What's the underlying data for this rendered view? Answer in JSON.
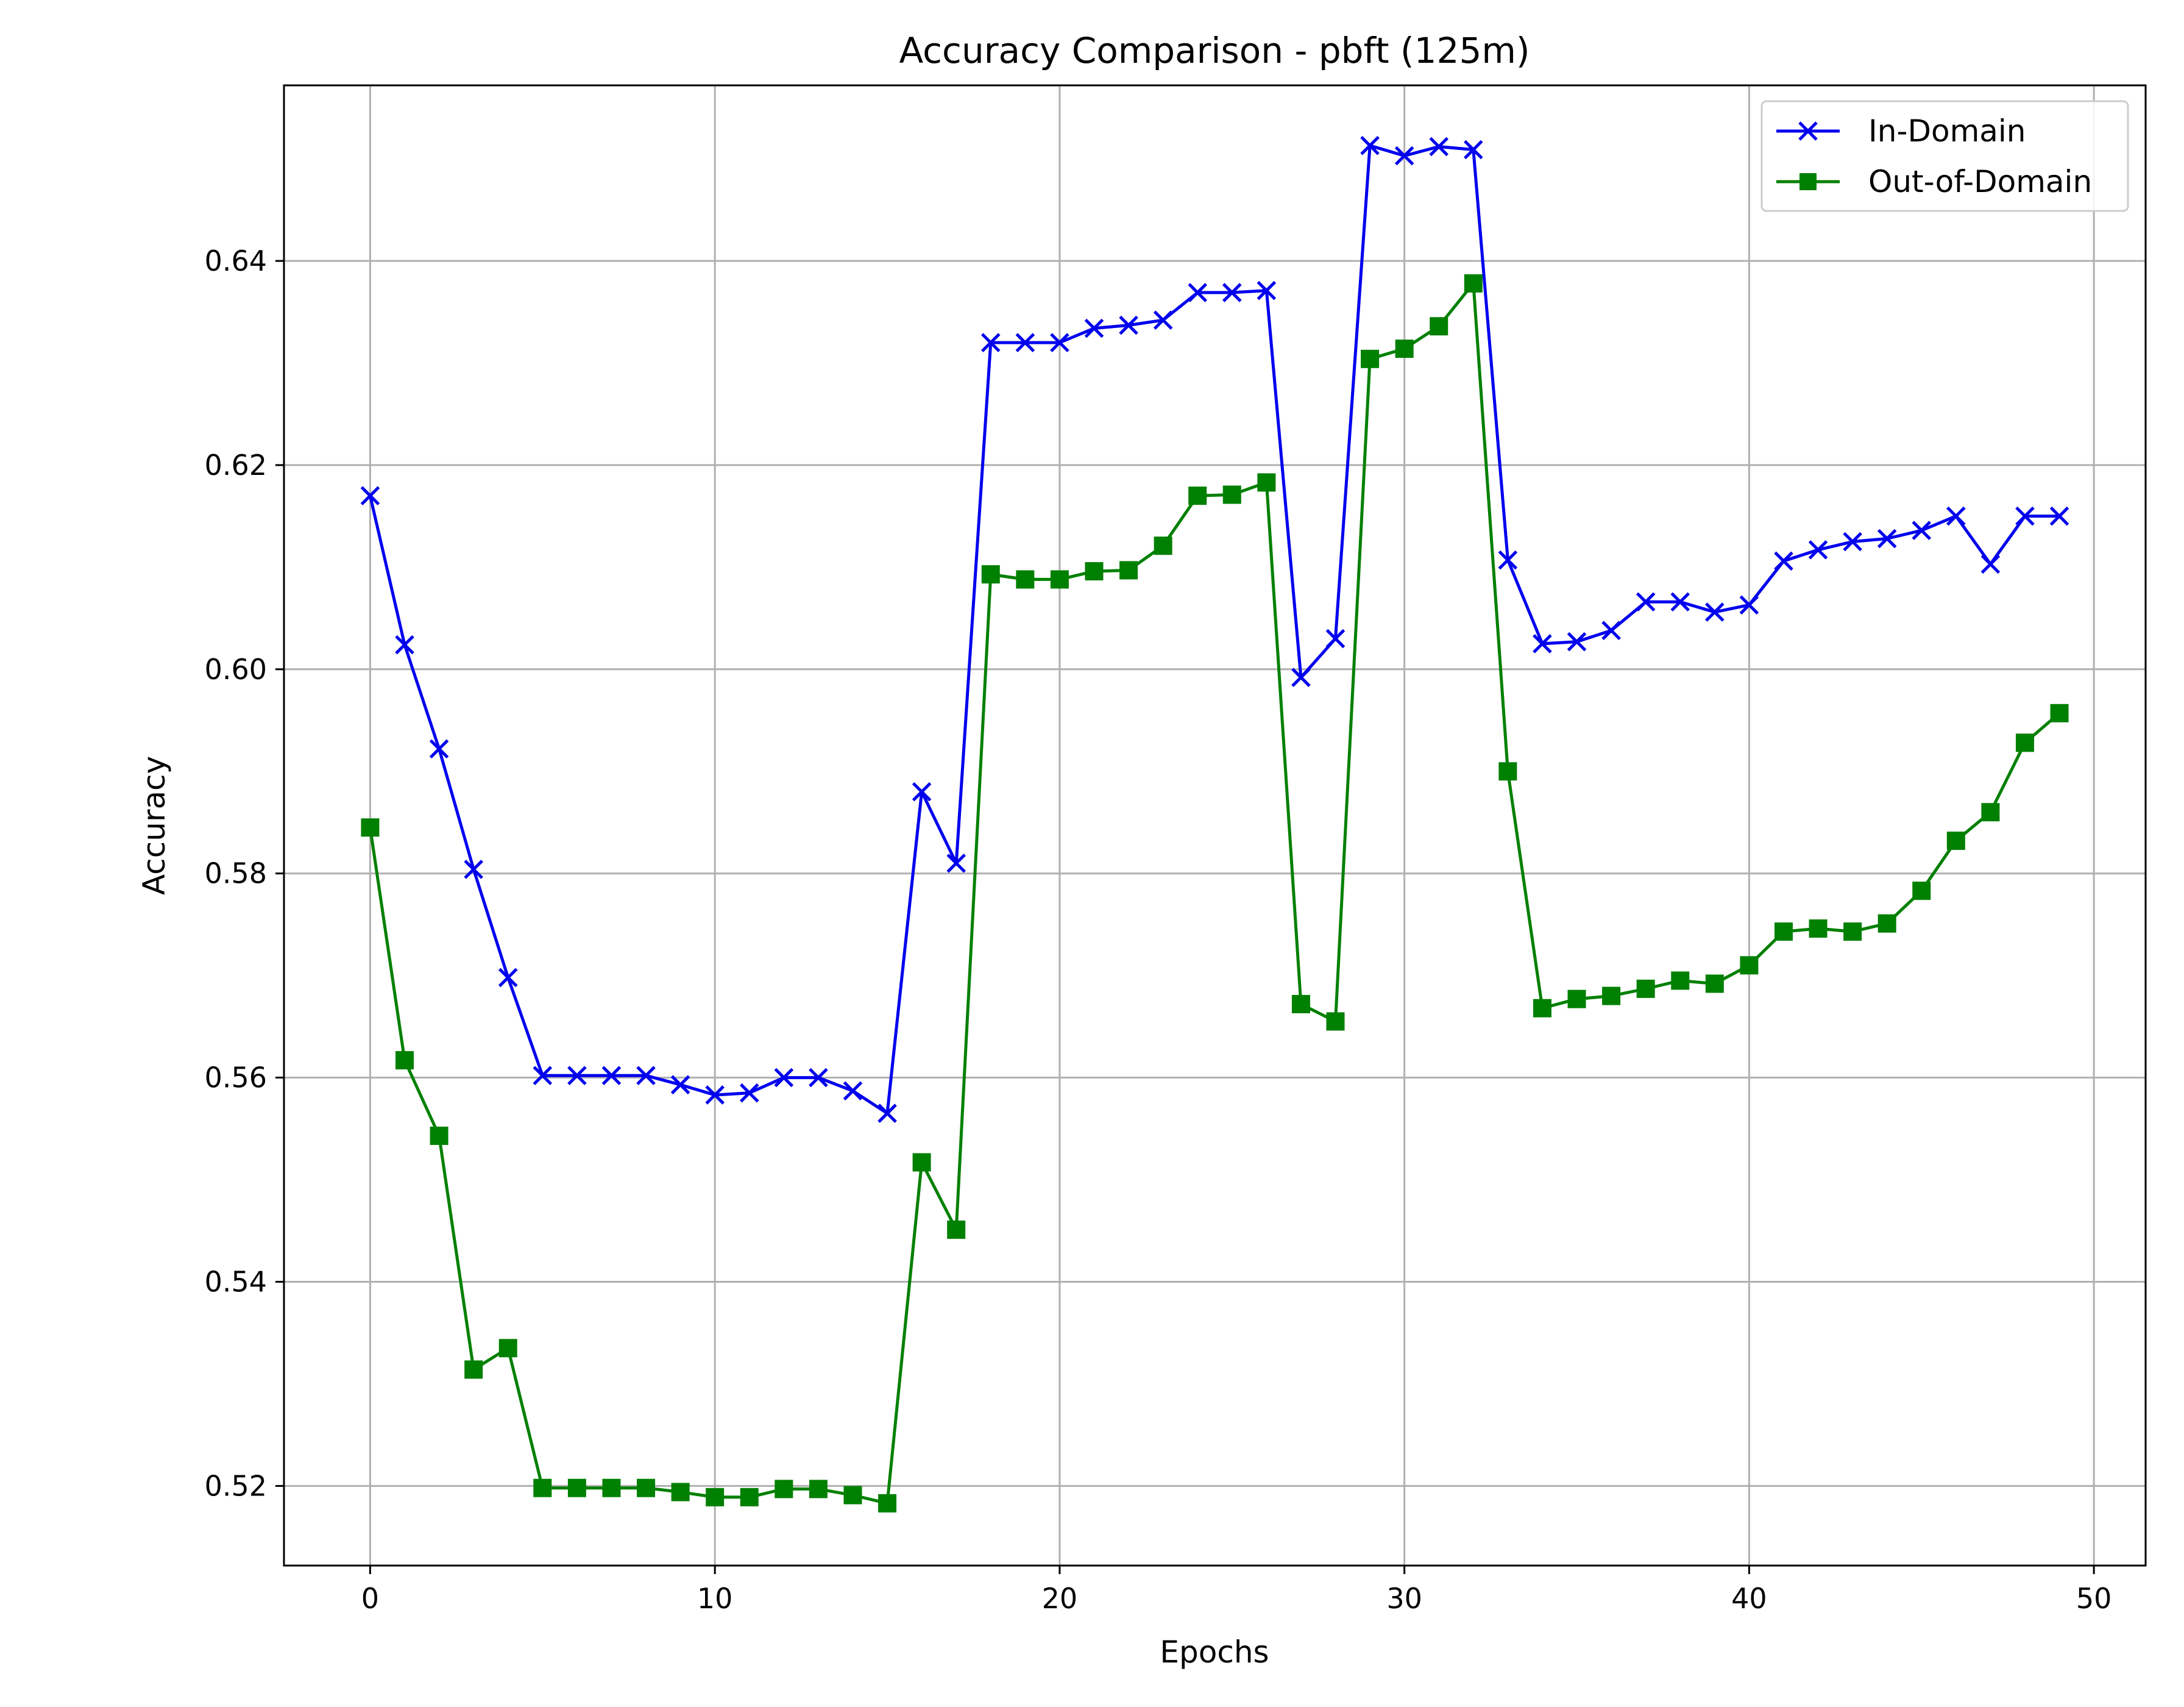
{
  "chart_data": {
    "type": "line",
    "title": "Accuracy Comparison - pbft (125m)",
    "xlabel": "Epochs",
    "ylabel": "Accuracy",
    "xlim": [
      -2.5,
      51.5
    ],
    "ylim": [
      0.5122,
      0.6572
    ],
    "xticks": [
      0,
      10,
      20,
      30,
      40,
      50
    ],
    "xtick_labels": [
      "0",
      "10",
      "20",
      "30",
      "40",
      "50"
    ],
    "yticks": [
      0.52,
      0.54,
      0.56,
      0.58,
      0.6,
      0.62,
      0.64
    ],
    "ytick_labels": [
      "0.52",
      "0.54",
      "0.56",
      "0.58",
      "0.60",
      "0.62",
      "0.64"
    ],
    "grid": true,
    "legend_position": "top-right",
    "x": [
      0,
      1,
      2,
      3,
      4,
      5,
      6,
      7,
      8,
      9,
      10,
      11,
      12,
      13,
      14,
      15,
      16,
      17,
      18,
      19,
      20,
      21,
      22,
      23,
      24,
      25,
      26,
      27,
      28,
      29,
      30,
      31,
      32,
      33,
      34,
      35,
      36,
      37,
      38,
      39,
      40,
      41,
      42,
      43,
      44,
      45,
      46,
      47,
      48,
      49
    ],
    "series": [
      {
        "name": "In-Domain",
        "color": "#0000ee",
        "marker": "x",
        "values": [
          0.617,
          0.6024,
          0.5922,
          0.5804,
          0.5698,
          0.5602,
          0.5602,
          0.5602,
          0.5602,
          0.5593,
          0.5583,
          0.5585,
          0.56,
          0.56,
          0.5587,
          0.5565,
          0.588,
          0.581,
          0.632,
          0.632,
          0.632,
          0.6334,
          0.6337,
          0.6342,
          0.6369,
          0.6369,
          0.6371,
          0.5992,
          0.603,
          0.6513,
          0.6503,
          0.6512,
          0.6509,
          0.6107,
          0.6025,
          0.6027,
          0.6038,
          0.6066,
          0.6066,
          0.6056,
          0.6063,
          0.6106,
          0.6117,
          0.6125,
          0.6128,
          0.6136,
          0.615,
          0.6103,
          0.615,
          0.615
        ]
      },
      {
        "name": "Out-of-Domain",
        "color": "#008000",
        "marker": "square",
        "values": [
          0.5845,
          0.5617,
          0.5543,
          0.5314,
          0.5335,
          0.5198,
          0.5198,
          0.5198,
          0.5198,
          0.5194,
          0.5189,
          0.5189,
          0.5197,
          0.5197,
          0.5191,
          0.5183,
          0.5517,
          0.5451,
          0.6093,
          0.6088,
          0.6088,
          0.6096,
          0.6097,
          0.6121,
          0.617,
          0.6171,
          0.6183,
          0.5672,
          0.5655,
          0.6304,
          0.6314,
          0.6336,
          0.6378,
          0.59,
          0.5668,
          0.5677,
          0.568,
          0.5687,
          0.5695,
          0.5692,
          0.571,
          0.5743,
          0.5746,
          0.5743,
          0.5751,
          0.5783,
          0.5832,
          0.586,
          0.5928,
          0.5957
        ]
      }
    ]
  }
}
